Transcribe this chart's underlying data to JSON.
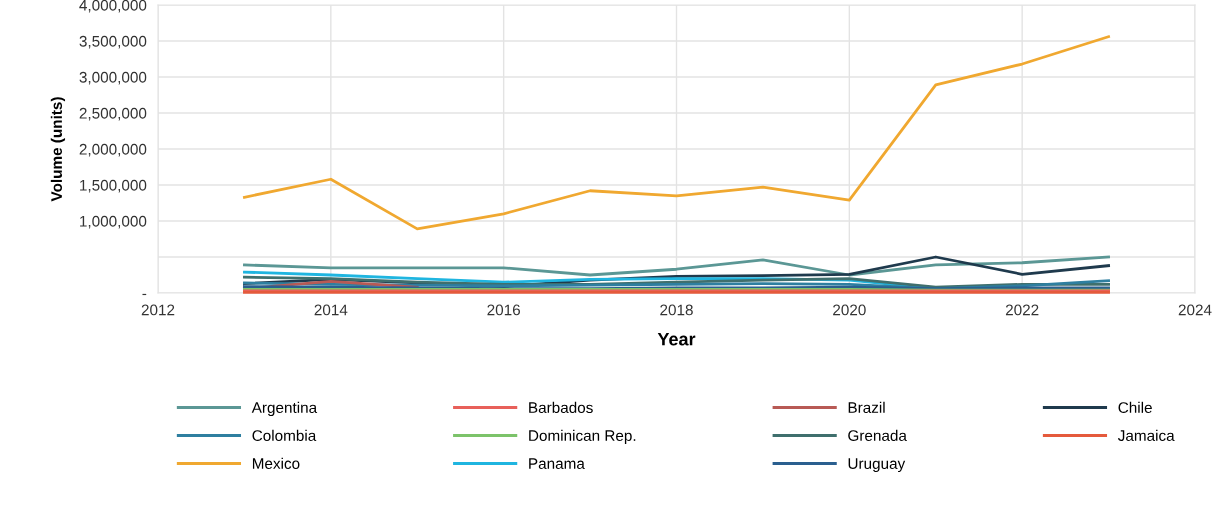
{
  "chart_data": {
    "type": "line",
    "xlabel": "Year",
    "ylabel": "Volume (units)",
    "x": [
      2013,
      2014,
      2015,
      2016,
      2017,
      2018,
      2019,
      2020,
      2021,
      2022,
      2023
    ],
    "xlim": [
      2012,
      2024
    ],
    "xticks": [
      2012,
      2014,
      2016,
      2018,
      2020,
      2022,
      2024
    ],
    "ylim": [
      0,
      4000000
    ],
    "yticks": [
      {
        "value": 0,
        "label": "-"
      },
      {
        "value": 500000,
        "label": null
      },
      {
        "value": 1000000,
        "label": "1,000,000"
      },
      {
        "value": 1500000,
        "label": "1,500,000"
      },
      {
        "value": 2000000,
        "label": "2,000,000"
      },
      {
        "value": 2500000,
        "label": "2,500,000"
      },
      {
        "value": 3000000,
        "label": "3,000,000"
      },
      {
        "value": 3500000,
        "label": "3,500,000"
      },
      {
        "value": 4000000,
        "label": "4,000,000"
      }
    ],
    "grid": true,
    "legend": "bottom",
    "marker": "none",
    "line_style": "solid",
    "series": [
      {
        "name": "Argentina",
        "color": "#5b9795",
        "values": [
          390000,
          350000,
          350000,
          350000,
          250000,
          330000,
          460000,
          250000,
          390000,
          420000,
          500000
        ]
      },
      {
        "name": "Barbados",
        "color": "#e8605a",
        "values": [
          30000,
          30000,
          30000,
          30000,
          30000,
          30000,
          30000,
          30000,
          30000,
          30000,
          30000
        ]
      },
      {
        "name": "Brazil",
        "color": "#b85a55",
        "values": [
          60000,
          160000,
          80000,
          null,
          null,
          null,
          null,
          null,
          null,
          null,
          null
        ]
      },
      {
        "name": "Chile",
        "color": "#1f3a4d",
        "values": [
          130000,
          190000,
          140000,
          90000,
          180000,
          230000,
          240000,
          260000,
          500000,
          260000,
          380000
        ]
      },
      {
        "name": "Colombia",
        "color": "#2e7fa0",
        "values": [
          140000,
          120000,
          110000,
          100000,
          110000,
          120000,
          130000,
          120000,
          60000,
          100000,
          170000
        ]
      },
      {
        "name": "Dominican Rep.",
        "color": "#7cc36a",
        "values": [
          50000,
          50000,
          50000,
          50000,
          50000,
          50000,
          50000,
          50000,
          40000,
          40000,
          40000
        ]
      },
      {
        "name": "Grenada",
        "color": "#3f6f6d",
        "values": [
          220000,
          200000,
          150000,
          120000,
          120000,
          150000,
          180000,
          200000,
          80000,
          120000,
          120000
        ]
      },
      {
        "name": "Jamaica",
        "color": "#e55a3c",
        "values": [
          10000,
          10000,
          10000,
          10000,
          10000,
          10000,
          10000,
          10000,
          10000,
          10000,
          10000
        ]
      },
      {
        "name": "Mexico",
        "color": "#f0a830",
        "values": [
          1330000,
          1580000,
          890000,
          1100000,
          1420000,
          1350000,
          1470000,
          1290000,
          2890000,
          3180000,
          3560000
        ]
      },
      {
        "name": "Panama",
        "color": "#1fb5e0",
        "values": [
          290000,
          250000,
          200000,
          150000,
          190000,
          200000,
          200000,
          180000,
          60000,
          50000,
          60000
        ]
      },
      {
        "name": "Uruguay",
        "color": "#2a5f8f",
        "values": [
          90000,
          80000,
          70000,
          60000,
          60000,
          70000,
          70000,
          80000,
          60000,
          70000,
          70000
        ]
      }
    ]
  }
}
